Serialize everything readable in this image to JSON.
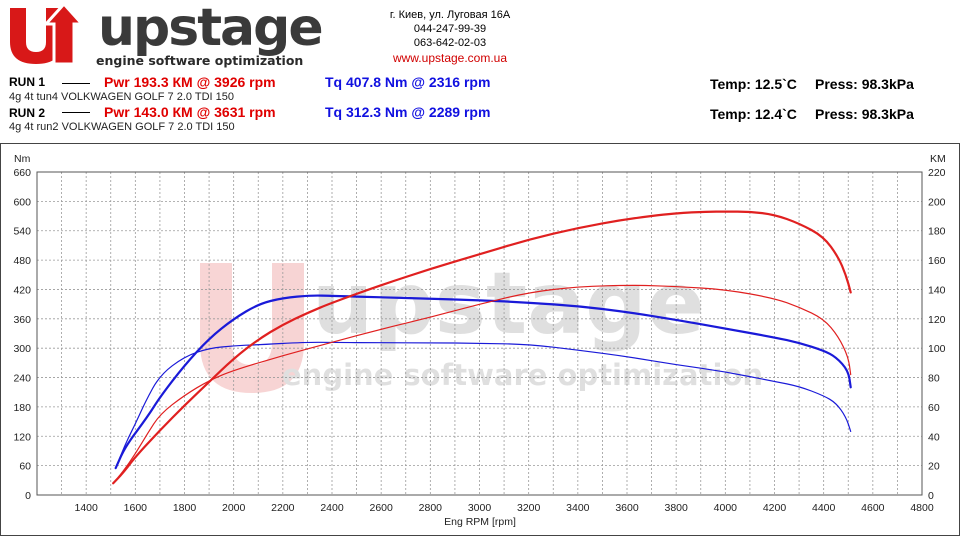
{
  "header": {
    "logo": {
      "brand": "upstage",
      "tagline": "engine software optimization"
    },
    "contact": {
      "address": "г. Киев, ул. Луговая 16А",
      "phone1": "044-247-99-39",
      "phone2": "063-642-02-03",
      "website": "www.upstage.com.ua"
    },
    "runs": [
      {
        "label": "RUN 1",
        "pwr": "Pwr  193.3 КМ @ 3926 rpm",
        "tq": "Tq 407.8 Nm @ 2316 rpm",
        "desc": "4g 4t tun4 VOLKWAGEN GOLF 7 2.0 TDI 150",
        "temp": "Temp: 12.5`C",
        "press": "Press: 98.3kPa"
      },
      {
        "label": "RUN 2",
        "pwr": "Pwr  143.0 КМ @ 3631 rpm",
        "tq": "Tq 312.3 Nm @ 2289 rpm",
        "desc": "4g 4t run2 VOLKWAGEN GOLF 7 2.0 TDI 150",
        "temp": "Temp: 12.4`C",
        "press": "Press: 98.3kPa"
      }
    ]
  },
  "colors": {
    "power": "#e02020",
    "torque": "#1a1ad8",
    "grid": "#9a9a9a",
    "accent_red": "#d10000"
  },
  "chart_data": {
    "type": "line",
    "xlabel": "Eng RPM [rpm]",
    "ylabel_left": "Nm",
    "ylabel_right": "KM",
    "xlim": [
      1200,
      4800
    ],
    "ylim_left": [
      0,
      660
    ],
    "ylim_right": [
      0,
      220
    ],
    "x_ticks": [
      1400,
      1600,
      1800,
      2000,
      2200,
      2400,
      2600,
      2800,
      3000,
      3200,
      3400,
      3600,
      3800,
      4000,
      4200,
      4400,
      4600,
      4800
    ],
    "y_ticks_left": [
      0,
      60,
      120,
      180,
      240,
      300,
      360,
      420,
      480,
      540,
      600,
      660
    ],
    "y_ticks_right": [
      0,
      20,
      40,
      60,
      80,
      100,
      120,
      140,
      160,
      180,
      200,
      220
    ],
    "grid": true,
    "series": [
      {
        "name": "RUN 1 Tq",
        "axis": "left",
        "color": "#1a1ad8",
        "width": 2.2,
        "points": [
          [
            1520,
            55
          ],
          [
            1560,
            100
          ],
          [
            1650,
            160
          ],
          [
            1700,
            200
          ],
          [
            1800,
            265
          ],
          [
            1900,
            320
          ],
          [
            2000,
            360
          ],
          [
            2100,
            390
          ],
          [
            2200,
            403
          ],
          [
            2316,
            408
          ],
          [
            2400,
            407
          ],
          [
            2600,
            404
          ],
          [
            2800,
            401
          ],
          [
            3000,
            398
          ],
          [
            3200,
            393
          ],
          [
            3400,
            386
          ],
          [
            3600,
            374
          ],
          [
            3800,
            358
          ],
          [
            4000,
            340
          ],
          [
            4200,
            322
          ],
          [
            4300,
            311
          ],
          [
            4400,
            295
          ],
          [
            4450,
            282
          ],
          [
            4500,
            254
          ],
          [
            4510,
            220
          ]
        ]
      },
      {
        "name": "RUN 2 Tq",
        "axis": "left",
        "color": "#1a1ad8",
        "width": 1.2,
        "points": [
          [
            1520,
            55
          ],
          [
            1560,
            105
          ],
          [
            1600,
            145
          ],
          [
            1640,
            190
          ],
          [
            1700,
            245
          ],
          [
            1800,
            283
          ],
          [
            1900,
            300
          ],
          [
            2000,
            305
          ],
          [
            2100,
            307
          ],
          [
            2289,
            312
          ],
          [
            2400,
            312
          ],
          [
            2600,
            311
          ],
          [
            2800,
            311
          ],
          [
            3000,
            310
          ],
          [
            3200,
            308
          ],
          [
            3400,
            296
          ],
          [
            3600,
            283
          ],
          [
            3800,
            266
          ],
          [
            4000,
            252
          ],
          [
            4200,
            232
          ],
          [
            4300,
            222
          ],
          [
            4400,
            203
          ],
          [
            4450,
            188
          ],
          [
            4490,
            160
          ],
          [
            4510,
            130
          ]
        ]
      },
      {
        "name": "RUN 1 Pwr",
        "axis": "right",
        "color": "#e02020",
        "width": 2.2,
        "points": [
          [
            1510,
            8
          ],
          [
            1550,
            15
          ],
          [
            1600,
            26
          ],
          [
            1700,
            44
          ],
          [
            1800,
            61
          ],
          [
            1900,
            77
          ],
          [
            2000,
            93
          ],
          [
            2100,
            106
          ],
          [
            2200,
            116
          ],
          [
            2300,
            124
          ],
          [
            2400,
            131
          ],
          [
            2600,
            143
          ],
          [
            2800,
            154
          ],
          [
            3000,
            164
          ],
          [
            3200,
            174
          ],
          [
            3400,
            182
          ],
          [
            3600,
            188
          ],
          [
            3800,
            192
          ],
          [
            3926,
            193
          ],
          [
            4000,
            193
          ],
          [
            4100,
            193
          ],
          [
            4200,
            191
          ],
          [
            4300,
            185
          ],
          [
            4400,
            176
          ],
          [
            4460,
            162
          ],
          [
            4490,
            150
          ],
          [
            4510,
            138
          ]
        ]
      },
      {
        "name": "RUN 2 Pwr",
        "axis": "right",
        "color": "#e02020",
        "width": 1.2,
        "points": [
          [
            1510,
            8
          ],
          [
            1550,
            16
          ],
          [
            1600,
            28
          ],
          [
            1650,
            42
          ],
          [
            1700,
            55
          ],
          [
            1800,
            68
          ],
          [
            1900,
            78
          ],
          [
            2000,
            85
          ],
          [
            2200,
            95
          ],
          [
            2400,
            104
          ],
          [
            2600,
            113
          ],
          [
            2800,
            121
          ],
          [
            3000,
            130
          ],
          [
            3200,
            138
          ],
          [
            3400,
            142
          ],
          [
            3631,
            143
          ],
          [
            3800,
            142
          ],
          [
            4000,
            140
          ],
          [
            4200,
            134
          ],
          [
            4300,
            128
          ],
          [
            4400,
            120
          ],
          [
            4460,
            108
          ],
          [
            4500,
            94
          ],
          [
            4510,
            82
          ]
        ]
      }
    ]
  }
}
